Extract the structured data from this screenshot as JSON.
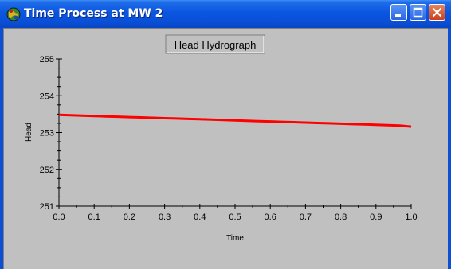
{
  "window": {
    "title": "Time Process at MW 2",
    "icon": "app-globe-icon",
    "controls": [
      "minimize-icon",
      "maximize-icon",
      "close-icon"
    ]
  },
  "chart_data": {
    "type": "line",
    "title": "Head Hydrograph",
    "xlabel": "Time",
    "ylabel": "Head",
    "xlim": [
      0.0,
      1.0
    ],
    "ylim": [
      251,
      255
    ],
    "xticks": [
      "0.0",
      "0.1",
      "0.2",
      "0.3",
      "0.4",
      "0.5",
      "0.6",
      "0.7",
      "0.8",
      "0.9",
      "1.0"
    ],
    "yticks": [
      "251",
      "252",
      "253",
      "254",
      "255"
    ],
    "grid": false,
    "series": [
      {
        "color": "#ff0000",
        "x": [
          0.0,
          0.0333,
          0.0667,
          0.1,
          0.1333,
          0.1667,
          0.2,
          0.2333,
          0.2667,
          0.3,
          0.3333,
          0.3667,
          0.4,
          0.4333,
          0.4667,
          0.5,
          0.5333,
          0.5667,
          0.6,
          0.6333,
          0.6667,
          0.7,
          0.7333,
          0.7667,
          0.8,
          0.8333,
          0.8667,
          0.9,
          0.9333,
          0.9667,
          1.0
        ],
        "y": [
          253.48,
          253.47,
          253.46,
          253.45,
          253.44,
          253.43,
          253.42,
          253.41,
          253.4,
          253.39,
          253.38,
          253.37,
          253.36,
          253.35,
          253.34,
          253.33,
          253.32,
          253.31,
          253.3,
          253.29,
          253.28,
          253.27,
          253.26,
          253.25,
          253.24,
          253.23,
          253.22,
          253.21,
          253.2,
          253.19,
          253.16
        ]
      }
    ]
  }
}
